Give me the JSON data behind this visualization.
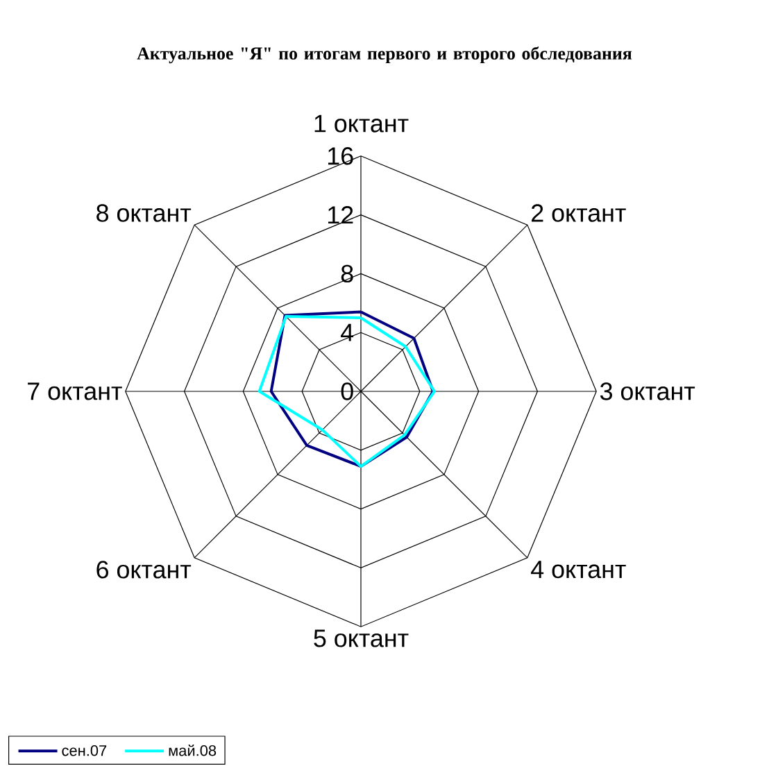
{
  "chart_data": {
    "type": "radar",
    "title": "Актуальное \"Я\"  по итогам первого и второго обследования",
    "categories": [
      "1 октант",
      "2 октант",
      "3 октант",
      "4 октант",
      "5 октант",
      "6 октант",
      "7 октант",
      "8 октант"
    ],
    "series": [
      {
        "name": "сен.07",
        "color": "#000080",
        "values": [
          5.4,
          5.1,
          4.9,
          4.4,
          5.1,
          5.2,
          6.1,
          7.3
        ]
      },
      {
        "name": "май.08",
        "color": "#00ffff",
        "values": [
          5.0,
          4.3,
          5.0,
          4.2,
          5.1,
          3.7,
          6.9,
          7.2
        ]
      }
    ],
    "ylim": [
      0,
      16
    ],
    "yticks": [
      0,
      4,
      8,
      12,
      16
    ],
    "grid": true,
    "legend": "bottom left"
  }
}
